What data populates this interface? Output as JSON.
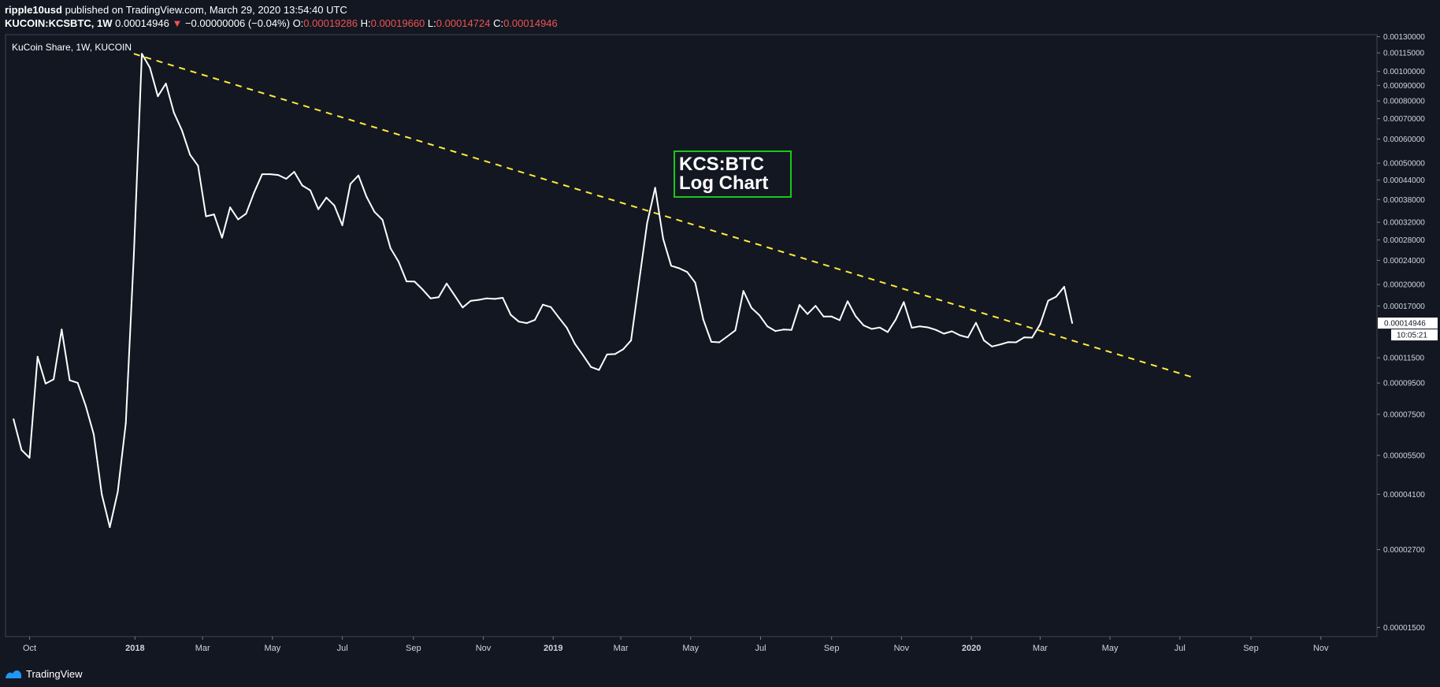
{
  "header": {
    "author": "ripple10usd",
    "published_text": "published on TradingView.com, March 29, 2020 13:54:40 UTC",
    "symbol": "KUCOIN:KCSBTC, 1W",
    "last": "0.00014946",
    "change": "−0.00000006 (−0.04%)",
    "o_label": "O:",
    "o_value": "0.00019286",
    "h_label": "H:",
    "h_value": "0.00019660",
    "l_label": "L:",
    "l_value": "0.00014724",
    "c_label": "C:",
    "c_value": "0.00014946"
  },
  "footer": {
    "brand": "TradingView"
  },
  "chart_data": {
    "type": "line",
    "title": "KuCoin Share, 1W, KUCOIN",
    "annotation": [
      "KCS:BTC",
      "Log Chart"
    ],
    "y_scale": "log",
    "ylim": [
      1.4e-05,
      0.00132
    ],
    "xlim": [
      "2017-09-10",
      "2020-12-20"
    ],
    "y_ticks": [
      "0.00001500",
      "0.00002700",
      "0.00004100",
      "0.00005500",
      "0.00007500",
      "0.00009500",
      "0.00011500",
      "0.00014946",
      "0.00017000",
      "0.00020000",
      "0.00024000",
      "0.00028000",
      "0.00032000",
      "0.00038000",
      "0.00044000",
      "0.00050000",
      "0.00060000",
      "0.00070000",
      "0.00080000",
      "0.00090000",
      "0.00100000",
      "0.00115000",
      "0.00130000"
    ],
    "last_price_label": "0.00014946",
    "countdown_label": "10:05:21",
    "x_ticks": [
      {
        "label": "Oct",
        "date": "2017-10-01",
        "bold": false
      },
      {
        "label": "2018",
        "date": "2018-01-01",
        "bold": true
      },
      {
        "label": "Mar",
        "date": "2018-03-01",
        "bold": false
      },
      {
        "label": "May",
        "date": "2018-05-01",
        "bold": false
      },
      {
        "label": "Jul",
        "date": "2018-07-01",
        "bold": false
      },
      {
        "label": "Sep",
        "date": "2018-09-01",
        "bold": false
      },
      {
        "label": "Nov",
        "date": "2018-11-01",
        "bold": false
      },
      {
        "label": "2019",
        "date": "2019-01-01",
        "bold": true
      },
      {
        "label": "Mar",
        "date": "2019-03-01",
        "bold": false
      },
      {
        "label": "May",
        "date": "2019-05-01",
        "bold": false
      },
      {
        "label": "Jul",
        "date": "2019-07-01",
        "bold": false
      },
      {
        "label": "Sep",
        "date": "2019-09-01",
        "bold": false
      },
      {
        "label": "Nov",
        "date": "2019-11-01",
        "bold": false
      },
      {
        "label": "2020",
        "date": "2020-01-01",
        "bold": true
      },
      {
        "label": "Mar",
        "date": "2020-03-01",
        "bold": false
      },
      {
        "label": "May",
        "date": "2020-05-01",
        "bold": false
      },
      {
        "label": "Jul",
        "date": "2020-07-01",
        "bold": false
      },
      {
        "label": "Sep",
        "date": "2020-09-01",
        "bold": false
      },
      {
        "label": "Nov",
        "date": "2020-11-01",
        "bold": false
      }
    ],
    "series": [
      {
        "color": "#ffffff",
        "points": [
          [
            "2017-09-17",
            7.23e-05
          ],
          [
            "2017-09-24",
            5.73e-05
          ],
          [
            "2017-10-01",
            5.4e-05
          ],
          [
            "2017-10-08",
            0.0001159
          ],
          [
            "2017-10-15",
            9.46e-05
          ],
          [
            "2017-10-22",
            9.77e-05
          ],
          [
            "2017-10-29",
            0.0001424
          ],
          [
            "2017-11-05",
            9.7e-05
          ],
          [
            "2017-11-12",
            9.52e-05
          ],
          [
            "2017-11-19",
            8e-05
          ],
          [
            "2017-11-26",
            6.45e-05
          ],
          [
            "2017-12-03",
            4.1e-05
          ],
          [
            "2017-12-10",
            3.2e-05
          ],
          [
            "2017-12-17",
            4.18e-05
          ],
          [
            "2017-12-24",
            7.01e-05
          ],
          [
            "2017-12-31",
            0.0002497
          ],
          [
            "2018-01-07",
            0.001143
          ],
          [
            "2018-01-14",
            0.0010286
          ],
          [
            "2018-01-21",
            0.000829
          ],
          [
            "2018-01-28",
            0.0009125
          ],
          [
            "2018-02-04",
            0.0007318
          ],
          [
            "2018-02-11",
            0.0006405
          ],
          [
            "2018-02-18",
            0.0005334
          ],
          [
            "2018-02-25",
            0.0004903
          ],
          [
            "2018-03-04",
            0.0003347
          ],
          [
            "2018-03-11",
            0.0003397
          ],
          [
            "2018-03-18",
            0.0002849
          ],
          [
            "2018-03-25",
            0.0003582
          ],
          [
            "2018-04-01",
            0.000327
          ],
          [
            "2018-04-08",
            0.0003415
          ],
          [
            "2018-04-15",
            0.0004008
          ],
          [
            "2018-04-22",
            0.0004602
          ],
          [
            "2018-04-29",
            0.0004602
          ],
          [
            "2018-05-06",
            0.0004573
          ],
          [
            "2018-05-13",
            0.0004442
          ],
          [
            "2018-05-20",
            0.0004685
          ],
          [
            "2018-05-27",
            0.0004226
          ],
          [
            "2018-06-03",
            0.0004073
          ],
          [
            "2018-06-10",
            0.000353
          ],
          [
            "2018-06-17",
            0.0003857
          ],
          [
            "2018-06-24",
            0.0003634
          ],
          [
            "2018-07-01",
            0.0003128
          ],
          [
            "2018-07-08",
            0.0004274
          ],
          [
            "2018-07-15",
            0.0004558
          ],
          [
            "2018-07-22",
            0.0003885
          ],
          [
            "2018-07-29",
            0.0003464
          ],
          [
            "2018-08-05",
            0.0003261
          ],
          [
            "2018-08-12",
            0.0002631
          ],
          [
            "2018-08-19",
            0.0002378
          ],
          [
            "2018-08-26",
            0.0002048
          ],
          [
            "2018-09-02",
            0.0002045
          ],
          [
            "2018-09-09",
            0.0001927
          ],
          [
            "2018-09-16",
            0.0001801
          ],
          [
            "2018-09-23",
            0.0001818
          ],
          [
            "2018-09-30",
            0.0002015
          ],
          [
            "2018-10-07",
            0.000184
          ],
          [
            "2018-10-14",
            0.0001681
          ],
          [
            "2018-10-21",
            0.0001767
          ],
          [
            "2018-10-28",
            0.0001781
          ],
          [
            "2018-11-04",
            0.0001801
          ],
          [
            "2018-11-11",
            0.0001794
          ],
          [
            "2018-11-18",
            0.0001809
          ],
          [
            "2018-11-25",
            0.000159
          ],
          [
            "2018-12-02",
            0.0001511
          ],
          [
            "2018-12-09",
            0.0001494
          ],
          [
            "2018-12-16",
            0.000153
          ],
          [
            "2018-12-23",
            0.0001718
          ],
          [
            "2018-12-30",
            0.0001686
          ],
          [
            "2019-01-06",
            0.0001557
          ],
          [
            "2019-01-13",
            0.000144
          ],
          [
            "2019-01-20",
            0.0001276
          ],
          [
            "2019-01-27",
            0.0001173
          ],
          [
            "2019-02-03",
            0.0001073
          ],
          [
            "2019-02-10",
            0.0001049
          ],
          [
            "2019-02-17",
            0.0001179
          ],
          [
            "2019-02-24",
            0.0001183
          ],
          [
            "2019-03-03",
            0.0001226
          ],
          [
            "2019-03-10",
            0.0001311
          ],
          [
            "2019-03-17",
            0.0002048
          ],
          [
            "2019-03-24",
            0.000318
          ],
          [
            "2019-03-31",
            0.0004153
          ],
          [
            "2019-04-07",
            0.0002822
          ],
          [
            "2019-04-14",
            0.0002305
          ],
          [
            "2019-04-21",
            0.0002261
          ],
          [
            "2019-04-28",
            0.0002198
          ],
          [
            "2019-05-05",
            0.0002027
          ],
          [
            "2019-05-12",
            0.0001535
          ],
          [
            "2019-05-19",
            0.0001297
          ],
          [
            "2019-05-26",
            0.0001292
          ],
          [
            "2019-06-02",
            0.0001351
          ],
          [
            "2019-06-09",
            0.0001415
          ],
          [
            "2019-06-16",
            0.0001905
          ],
          [
            "2019-06-23",
            0.0001677
          ],
          [
            "2019-06-30",
            0.0001586
          ],
          [
            "2019-07-07",
            0.0001457
          ],
          [
            "2019-07-14",
            0.0001407
          ],
          [
            "2019-07-21",
            0.0001423
          ],
          [
            "2019-07-28",
            0.000142
          ],
          [
            "2019-08-04",
            0.0001713
          ],
          [
            "2019-08-11",
            0.00016
          ],
          [
            "2019-08-18",
            0.0001702
          ],
          [
            "2019-08-25",
            0.000157
          ],
          [
            "2019-09-01",
            0.000157
          ],
          [
            "2019-09-08",
            0.0001528
          ],
          [
            "2019-09-15",
            0.0001762
          ],
          [
            "2019-09-22",
            0.0001575
          ],
          [
            "2019-09-29",
            0.0001468
          ],
          [
            "2019-10-06",
            0.000143
          ],
          [
            "2019-10-13",
            0.0001445
          ],
          [
            "2019-10-20",
            0.0001396
          ],
          [
            "2019-10-27",
            0.0001535
          ],
          [
            "2019-11-03",
            0.0001752
          ],
          [
            "2019-11-10",
            0.0001443
          ],
          [
            "2019-11-17",
            0.0001458
          ],
          [
            "2019-11-24",
            0.0001447
          ],
          [
            "2019-12-01",
            0.000142
          ],
          [
            "2019-12-08",
            0.000138
          ],
          [
            "2019-12-15",
            0.0001405
          ],
          [
            "2019-12-22",
            0.0001363
          ],
          [
            "2019-12-29",
            0.0001341
          ],
          [
            "2020-01-05",
            0.0001498
          ],
          [
            "2020-01-12",
            0.0001311
          ],
          [
            "2020-01-19",
            0.0001252
          ],
          [
            "2020-01-26",
            0.0001271
          ],
          [
            "2020-02-02",
            0.0001294
          ],
          [
            "2020-02-09",
            0.0001292
          ],
          [
            "2020-02-16",
            0.0001341
          ],
          [
            "2020-02-23",
            0.0001339
          ],
          [
            "2020-03-01",
            0.000148
          ],
          [
            "2020-03-08",
            0.0001769
          ],
          [
            "2020-03-15",
            0.0001824
          ],
          [
            "2020-03-22",
            0.0001966
          ],
          [
            "2020-03-29",
            0.0001495
          ]
        ]
      }
    ],
    "trendline": {
      "color": "#ffeb3b",
      "points": [
        [
          "2017-12-31",
          0.001143
        ],
        [
          "2020-07-12",
          9.93e-05
        ]
      ]
    }
  }
}
